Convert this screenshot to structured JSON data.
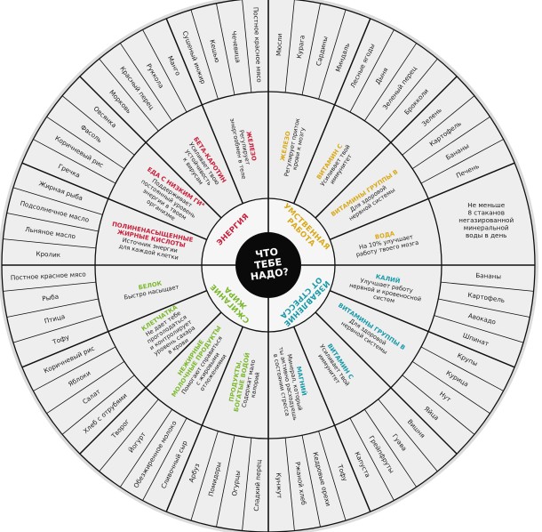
{
  "center": {
    "lines": [
      "ЧТО",
      "ТЕБЕ",
      "НАДО?"
    ]
  },
  "quadrants": [
    {
      "category_lines": [
        "УМСТВЕННАЯ",
        "РАБОТА"
      ],
      "color": "#d9a91a",
      "nutrients": [
        {
          "name_lines": [
            "ВОДА"
          ],
          "desc_lines": [
            "На 10% улучшает",
            "работу твоего мозга"
          ],
          "note_lines": [
            "Не меньше",
            "8 стаканов",
            "негазированной",
            "минеральной",
            "воды в день"
          ],
          "foods": []
        },
        {
          "name_lines": [
            "ВИТАМИНЫ ГРУППЫ В"
          ],
          "desc_lines": [
            "Для здоровой",
            "нервной системы"
          ],
          "foods": [
            "Печень",
            "Бананы",
            "Картофель",
            "Зелень"
          ]
        },
        {
          "name_lines": [
            "ВИТАМИН С"
          ],
          "desc_lines": [
            "Усиливает твой",
            "иммунитет"
          ],
          "foods": [
            "Брокколи",
            "Зеленый перец",
            "Дыня",
            "Лесные ягоды"
          ]
        },
        {
          "name_lines": [
            "ЖЕЛЕЗО"
          ],
          "desc_lines": [
            "Регулирует приток",
            "крови к мозгу"
          ],
          "foods": [
            "Миндаль",
            "Сардины",
            "Курага",
            "Мюсли"
          ]
        }
      ]
    },
    {
      "category_lines": [
        "ЭНЕРГИЯ"
      ],
      "color": "#c8203c",
      "nutrients": [
        {
          "name_lines": [
            "ЖЕЛЕЗО"
          ],
          "desc_lines": [
            "Регулирует",
            "энергообмен в теле"
          ],
          "foods": [
            "Постное красное мясо",
            "Чечевица",
            "Кешью",
            "Сушеный инжир"
          ]
        },
        {
          "name_lines": [
            "БЕТА-КАРОТИН"
          ],
          "desc_lines": [
            "Усиливает твою",
            "устойчивость",
            "к вирусам"
          ],
          "foods": [
            "Манго",
            "Руккола",
            "Красный перец",
            "Морковь"
          ]
        },
        {
          "name_lines": [
            "ЕДА С НИЗКИМ ГИ*"
          ],
          "desc_lines": [
            "Поддерживает",
            "постоянный уровень",
            "энергии в твоем",
            "организме"
          ],
          "foods": [
            "Овсянка",
            "Фасоль",
            "Коричневый рис",
            "Гречка"
          ]
        },
        {
          "name_lines": [
            "ПОЛИНЕНАСЫЩЕННЫЕ",
            "ЖИРНЫЕ КИСЛОТЫ"
          ],
          "desc_lines": [
            "Источник энергии",
            "для каждой клетки"
          ],
          "foods": [
            "Жирная рыба",
            "Подсолнечное масло",
            "Льняное масло",
            "Кролик"
          ]
        }
      ]
    },
    {
      "category_lines": [
        "СЖИГАНИЕ",
        "ЖИРА"
      ],
      "color": "#7cb82f",
      "nutrients": [
        {
          "name_lines": [
            "БЕЛОК"
          ],
          "desc_lines": [
            "Быстро насыщает"
          ],
          "foods": [
            "Постное красное мясо",
            "Рыба",
            "Птица",
            "Тофу"
          ]
        },
        {
          "name_lines": [
            "КЛЕТЧАТКА"
          ],
          "desc_lines": [
            "Не дает тебе",
            "проголодаться",
            "и контролирует",
            "уровень сахара",
            "в крови"
          ],
          "foods": [
            "Коричневый рис",
            "Яблоки",
            "Салат",
            "Хлеб с отрубями"
          ]
        },
        {
          "name_lines": [
            "НЕЖИРНЫЕ",
            "МОЛОЧНЫЕ ПРОДУКТЫ"
          ],
          "desc_lines": [
            "Помогают справиться",
            "с жировыми",
            "отложениями"
          ],
          "foods": [
            "Творог",
            "Йогурт",
            "Обезжиренное молоко",
            "Сливочный сыр"
          ]
        },
        {
          "name_lines": [
            "ПРОДУКТЫ,",
            "БОГАТЫЕ ВОДОЙ"
          ],
          "desc_lines": [
            "Содержат мало",
            "калорий"
          ],
          "foods": [
            "Арбуз",
            "Помидоры",
            "Огурцы",
            "Сладкий перец"
          ]
        }
      ]
    },
    {
      "category_lines": [
        "ИЗБАВЛЕНИЕ",
        "ОТ СТРЕССА"
      ],
      "color": "#1a9aa8",
      "nutrients": [
        {
          "name_lines": [
            "МАГНИЙ"
          ],
          "desc_lines": [
            "Минерал, который",
            "ты активно расходуешь",
            "в состоянии стресса"
          ],
          "foods": [
            "Кунжут",
            "Ржаной хлеб",
            "Кедровые орехи",
            "Тофу"
          ]
        },
        {
          "name_lines": [
            "ВИТАМИН С"
          ],
          "desc_lines": [
            "Усиливает твой",
            "иммунитет"
          ],
          "foods": [
            "Капуста",
            "Грейпфруты",
            "Гуава",
            "Вишня"
          ]
        },
        {
          "name_lines": [
            "ВИТАМИНЫ ГРУППЫ В"
          ],
          "desc_lines": [
            "Для здоровой",
            "нервной системы"
          ],
          "foods": [
            "Яйца",
            "Нут",
            "Курица",
            "Крупы"
          ]
        },
        {
          "name_lines": [
            "КАЛИЙ"
          ],
          "desc_lines": [
            "Улучшает работу",
            "нервной и кровеносной",
            "систем"
          ],
          "foods": [
            "Шпинат",
            "Авокадо",
            "Картофель",
            "Бананы"
          ]
        }
      ]
    }
  ],
  "colors": {
    "disc": "#eeeeee",
    "lines": "#111111",
    "center": "#0a0a0a"
  }
}
